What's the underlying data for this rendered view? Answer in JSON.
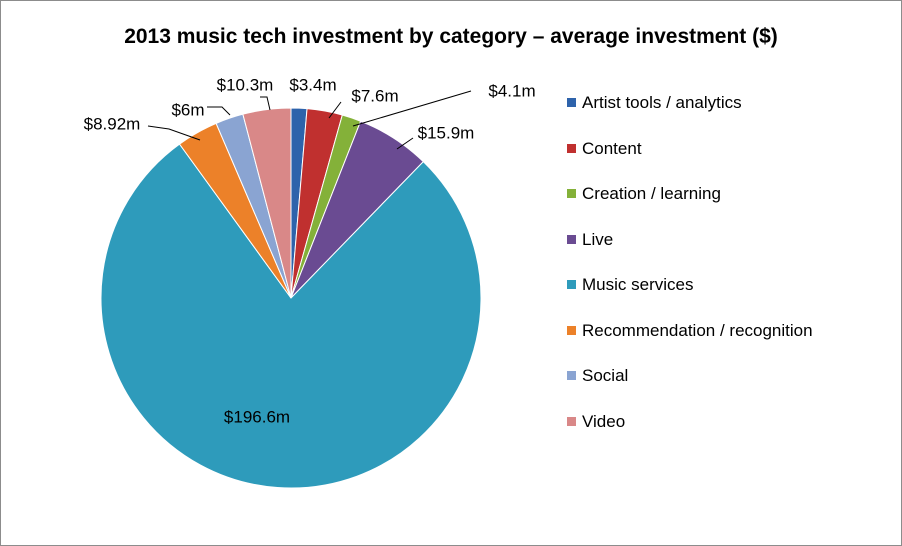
{
  "chart_data": {
    "type": "pie",
    "title": "2013 music tech investment by category – average investment ($)",
    "categories": [
      "Artist tools / analytics",
      "Content",
      "Creation / learning",
      "Live",
      "Music services",
      "Recommendation / recognition",
      "Social",
      "Video"
    ],
    "values": [
      3.4,
      7.6,
      4.1,
      15.9,
      196.6,
      8.92,
      6,
      10.3
    ],
    "data_labels": [
      "$3.4m",
      "$7.6m",
      "$4.1m",
      "$15.9m",
      "$196.6m",
      "$8.92m",
      "$6m",
      "$10.3m"
    ],
    "colors": [
      "#2e63ab",
      "#c0302f",
      "#84b139",
      "#6a4b92",
      "#2e9bbb",
      "#ec8129",
      "#8aa4d2",
      "#d98888"
    ],
    "start_angle_deg": 0,
    "direction": "clockwise",
    "legend_position": "right"
  }
}
